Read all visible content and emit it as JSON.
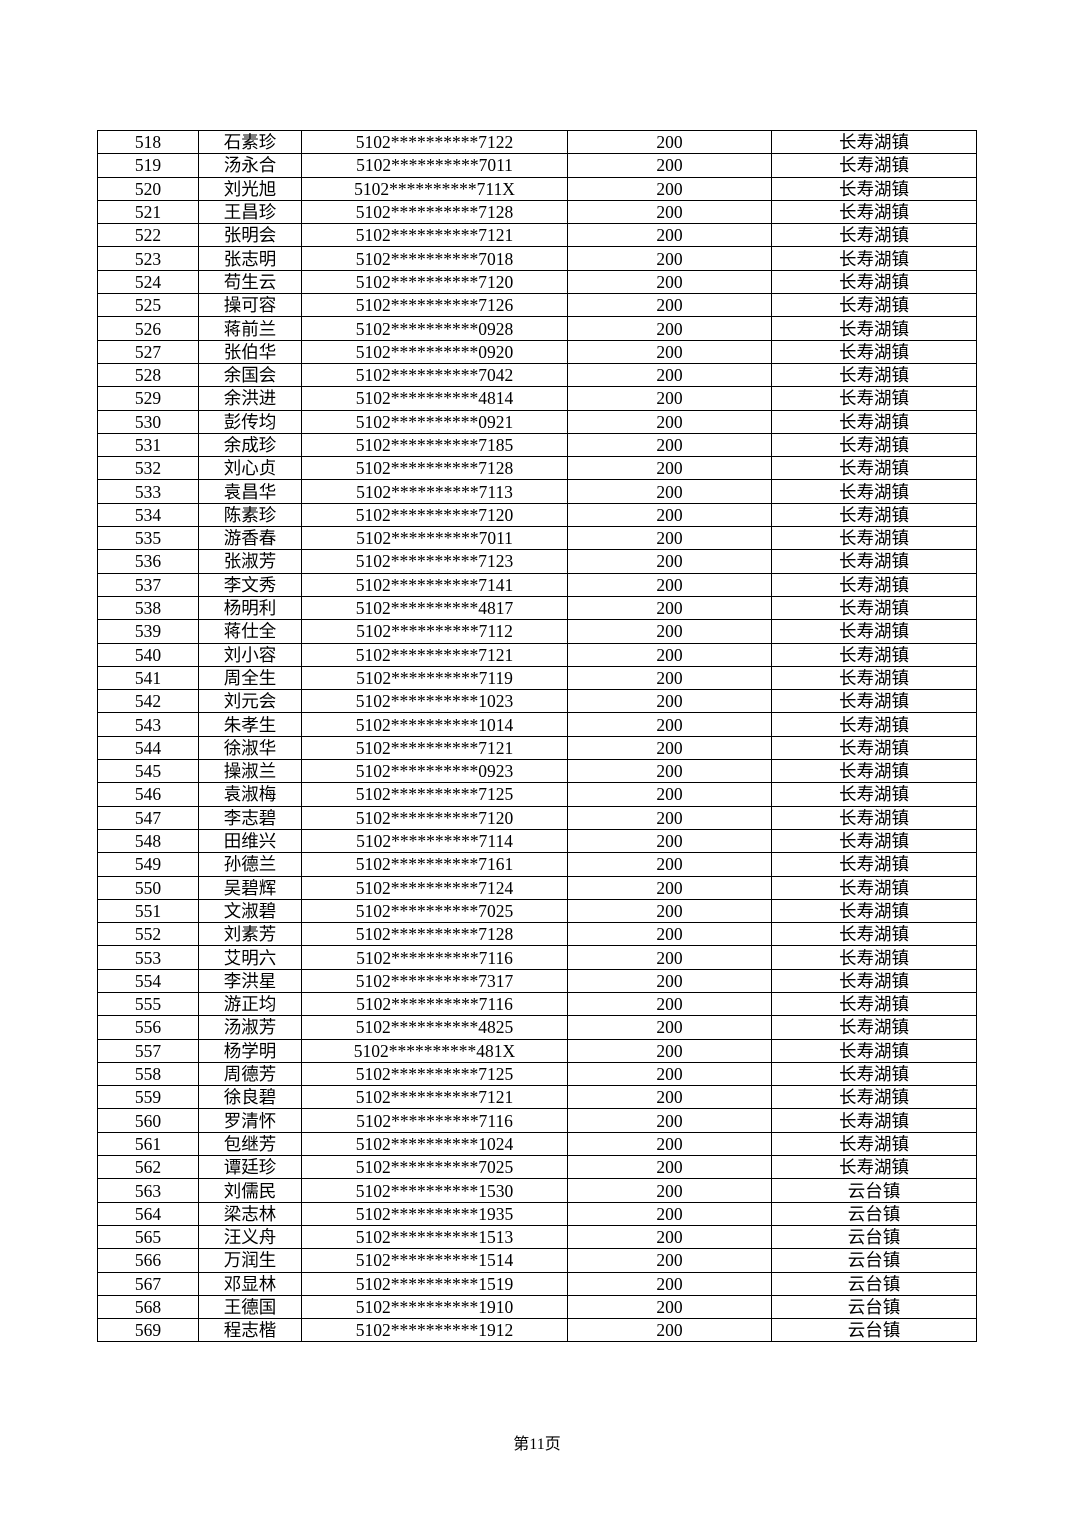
{
  "table": {
    "rows": [
      [
        "518",
        "石素珍",
        "5102**********7122",
        "200",
        "长寿湖镇"
      ],
      [
        "519",
        "汤永合",
        "5102**********7011",
        "200",
        "长寿湖镇"
      ],
      [
        "520",
        "刘光旭",
        "5102**********711X",
        "200",
        "长寿湖镇"
      ],
      [
        "521",
        "王昌珍",
        "5102**********7128",
        "200",
        "长寿湖镇"
      ],
      [
        "522",
        "张明会",
        "5102**********7121",
        "200",
        "长寿湖镇"
      ],
      [
        "523",
        "张志明",
        "5102**********7018",
        "200",
        "长寿湖镇"
      ],
      [
        "524",
        "苟生云",
        "5102**********7120",
        "200",
        "长寿湖镇"
      ],
      [
        "525",
        "操可容",
        "5102**********7126",
        "200",
        "长寿湖镇"
      ],
      [
        "526",
        "蒋前兰",
        "5102**********0928",
        "200",
        "长寿湖镇"
      ],
      [
        "527",
        "张伯华",
        "5102**********0920",
        "200",
        "长寿湖镇"
      ],
      [
        "528",
        "余国会",
        "5102**********7042",
        "200",
        "长寿湖镇"
      ],
      [
        "529",
        "余洪进",
        "5102**********4814",
        "200",
        "长寿湖镇"
      ],
      [
        "530",
        "彭传均",
        "5102**********0921",
        "200",
        "长寿湖镇"
      ],
      [
        "531",
        "余成珍",
        "5102**********7185",
        "200",
        "长寿湖镇"
      ],
      [
        "532",
        "刘心贞",
        "5102**********7128",
        "200",
        "长寿湖镇"
      ],
      [
        "533",
        "袁昌华",
        "5102**********7113",
        "200",
        "长寿湖镇"
      ],
      [
        "534",
        "陈素珍",
        "5102**********7120",
        "200",
        "长寿湖镇"
      ],
      [
        "535",
        "游香春",
        "5102**********7011",
        "200",
        "长寿湖镇"
      ],
      [
        "536",
        "张淑芳",
        "5102**********7123",
        "200",
        "长寿湖镇"
      ],
      [
        "537",
        "李文秀",
        "5102**********7141",
        "200",
        "长寿湖镇"
      ],
      [
        "538",
        "杨明利",
        "5102**********4817",
        "200",
        "长寿湖镇"
      ],
      [
        "539",
        "蒋仕全",
        "5102**********7112",
        "200",
        "长寿湖镇"
      ],
      [
        "540",
        "刘小容",
        "5102**********7121",
        "200",
        "长寿湖镇"
      ],
      [
        "541",
        "周全生",
        "5102**********7119",
        "200",
        "长寿湖镇"
      ],
      [
        "542",
        "刘元会",
        "5102**********1023",
        "200",
        "长寿湖镇"
      ],
      [
        "543",
        "朱孝生",
        "5102**********1014",
        "200",
        "长寿湖镇"
      ],
      [
        "544",
        "徐淑华",
        "5102**********7121",
        "200",
        "长寿湖镇"
      ],
      [
        "545",
        "操淑兰",
        "5102**********0923",
        "200",
        "长寿湖镇"
      ],
      [
        "546",
        "袁淑梅",
        "5102**********7125",
        "200",
        "长寿湖镇"
      ],
      [
        "547",
        "李志碧",
        "5102**********7120",
        "200",
        "长寿湖镇"
      ],
      [
        "548",
        "田维兴",
        "5102**********7114",
        "200",
        "长寿湖镇"
      ],
      [
        "549",
        "孙德兰",
        "5102**********7161",
        "200",
        "长寿湖镇"
      ],
      [
        "550",
        "吴碧辉",
        "5102**********7124",
        "200",
        "长寿湖镇"
      ],
      [
        "551",
        "文淑碧",
        "5102**********7025",
        "200",
        "长寿湖镇"
      ],
      [
        "552",
        "刘素芳",
        "5102**********7128",
        "200",
        "长寿湖镇"
      ],
      [
        "553",
        "艾明六",
        "5102**********7116",
        "200",
        "长寿湖镇"
      ],
      [
        "554",
        "李洪星",
        "5102**********7317",
        "200",
        "长寿湖镇"
      ],
      [
        "555",
        "游正均",
        "5102**********7116",
        "200",
        "长寿湖镇"
      ],
      [
        "556",
        "汤淑芳",
        "5102**********4825",
        "200",
        "长寿湖镇"
      ],
      [
        "557",
        "杨学明",
        "5102**********481X",
        "200",
        "长寿湖镇"
      ],
      [
        "558",
        "周德芳",
        "5102**********7125",
        "200",
        "长寿湖镇"
      ],
      [
        "559",
        "徐良碧",
        "5102**********7121",
        "200",
        "长寿湖镇"
      ],
      [
        "560",
        "罗清怀",
        "5102**********7116",
        "200",
        "长寿湖镇"
      ],
      [
        "561",
        "包继芳",
        "5102**********1024",
        "200",
        "长寿湖镇"
      ],
      [
        "562",
        "谭廷珍",
        "5102**********7025",
        "200",
        "长寿湖镇"
      ],
      [
        "563",
        "刘儒民",
        "5102**********1530",
        "200",
        "云台镇"
      ],
      [
        "564",
        "梁志林",
        "5102**********1935",
        "200",
        "云台镇"
      ],
      [
        "565",
        "汪义舟",
        "5102**********1513",
        "200",
        "云台镇"
      ],
      [
        "566",
        "万润生",
        "5102**********1514",
        "200",
        "云台镇"
      ],
      [
        "567",
        "邓显林",
        "5102**********1519",
        "200",
        "云台镇"
      ],
      [
        "568",
        "王德国",
        "5102**********1910",
        "200",
        "云台镇"
      ],
      [
        "569",
        "程志楷",
        "5102**********1912",
        "200",
        "云台镇"
      ]
    ]
  },
  "footer": {
    "page_label": "第11页"
  }
}
